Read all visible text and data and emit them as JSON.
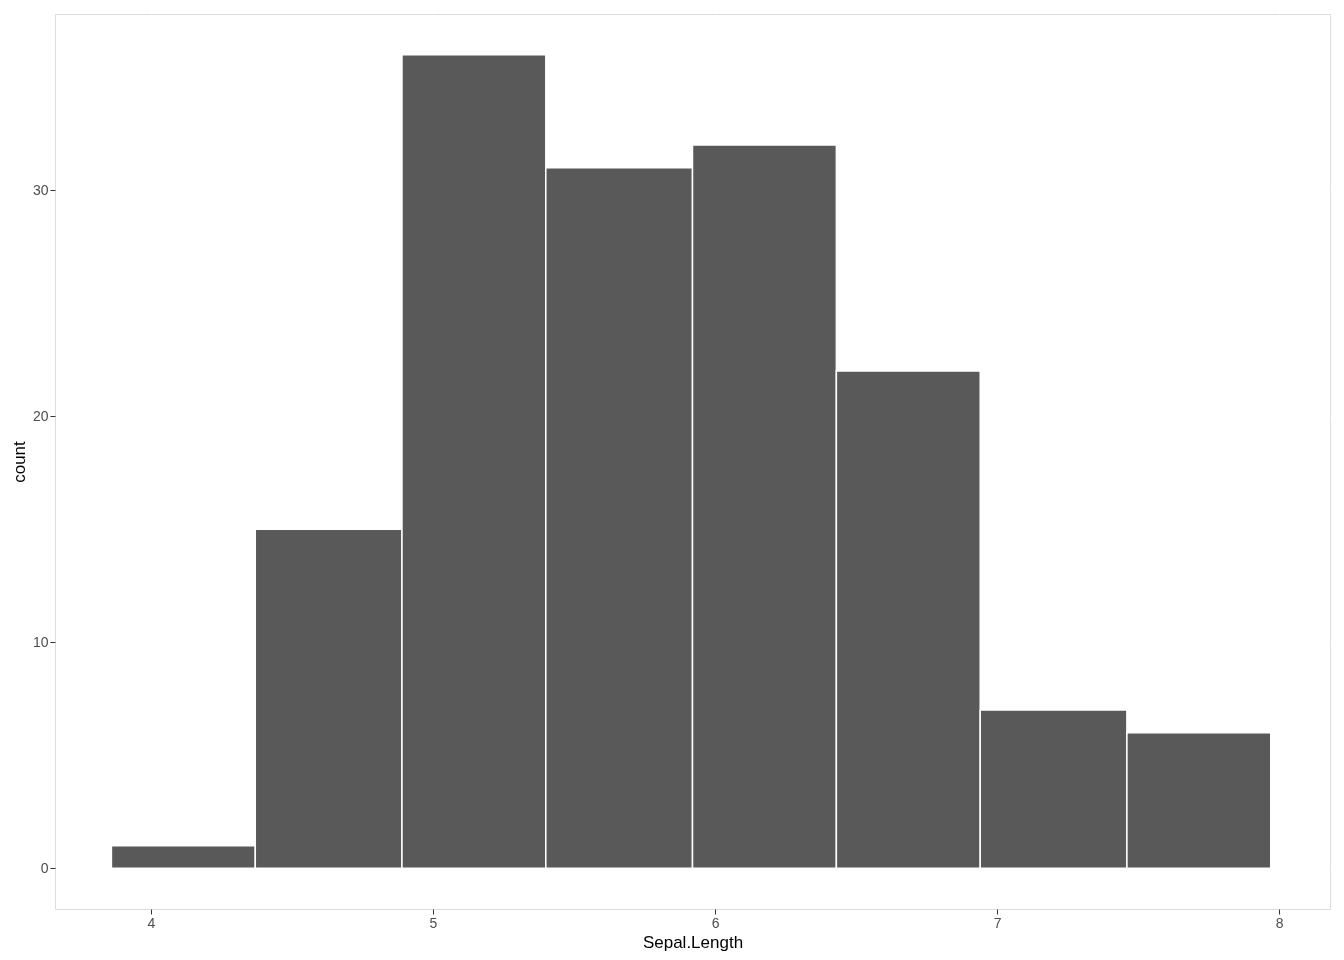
{
  "chart_data": {
    "type": "histogram",
    "xlabel": "Sepal.Length",
    "ylabel": "count",
    "bins": [
      3.86,
      4.37,
      4.89,
      5.4,
      5.92,
      6.43,
      6.94,
      7.46,
      7.97
    ],
    "values": [
      1,
      15,
      36,
      31,
      32,
      22,
      7,
      6
    ],
    "color": "#595959",
    "xlim": [
      3.66,
      8.18
    ],
    "xticks": [
      4,
      5,
      6,
      7,
      8
    ],
    "ylim": [
      -1.8,
      37.8
    ],
    "yticks": [
      0,
      10,
      20,
      30
    ],
    "grid": true
  }
}
